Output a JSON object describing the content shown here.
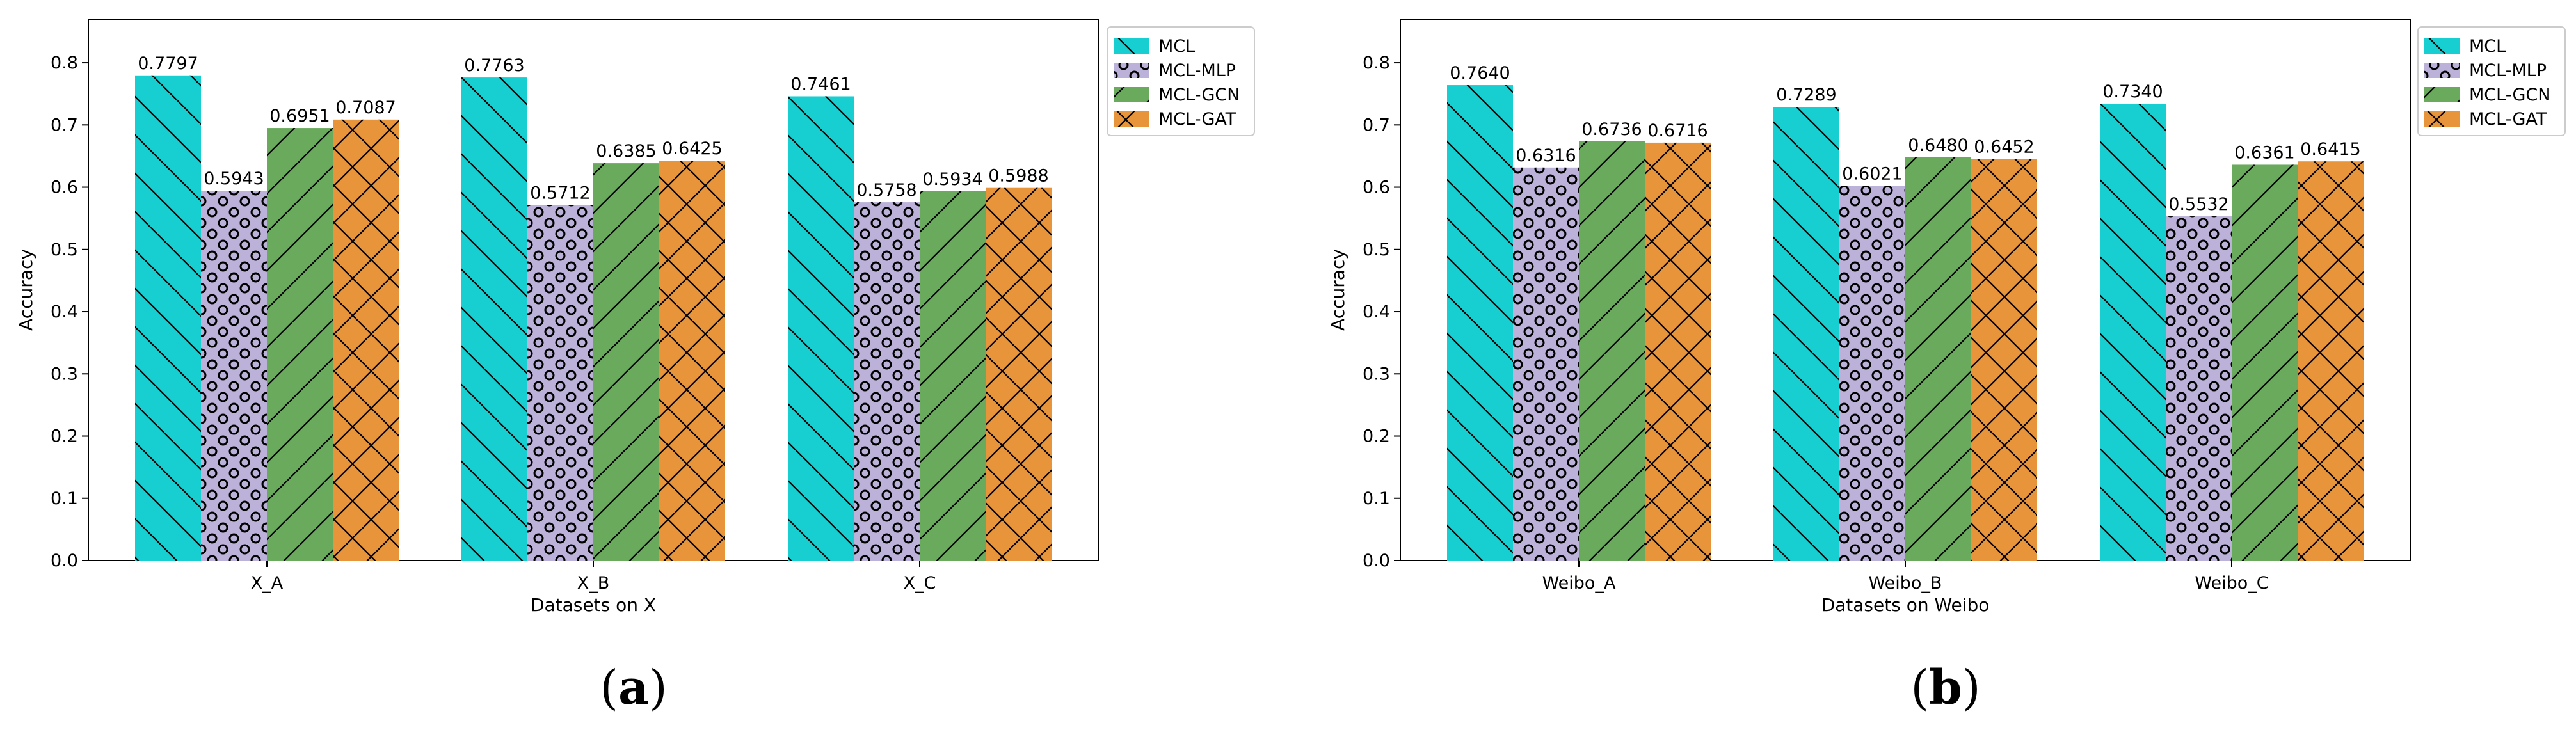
{
  "colors": {
    "MCL": "#17ced0",
    "MCL-MLP": "#bcb2d9",
    "MCL-GCN": "#6aaa5c",
    "MCL-GAT": "#e8943a"
  },
  "chart_data": [
    {
      "type": "bar",
      "title": "",
      "xlabel": "Datasets on X",
      "ylabel": "Accuracy",
      "ylim": [
        0,
        0.87
      ],
      "yticks": [
        "0.0",
        "0.1",
        "0.2",
        "0.3",
        "0.4",
        "0.5",
        "0.6",
        "0.7",
        "0.8"
      ],
      "categories": [
        "X_A",
        "X_B",
        "X_C"
      ],
      "legend_position": "outside-top-right",
      "series": [
        {
          "name": "MCL",
          "values": [
            0.7797,
            0.7763,
            0.7461
          ],
          "labels": [
            "0.7797",
            "0.7763",
            "0.7461"
          ],
          "hatch": "backslash"
        },
        {
          "name": "MCL-MLP",
          "values": [
            0.5943,
            0.5712,
            0.5758
          ],
          "labels": [
            "0.5943",
            "0.5712",
            "0.5758"
          ],
          "hatch": "circles"
        },
        {
          "name": "MCL-GCN",
          "values": [
            0.6951,
            0.6385,
            0.5934
          ],
          "labels": [
            "0.6951",
            "0.6385",
            "0.5934"
          ],
          "hatch": "slash"
        },
        {
          "name": "MCL-GAT",
          "values": [
            0.7087,
            0.6425,
            0.5988
          ],
          "labels": [
            "0.7087",
            "0.6425",
            "0.5988"
          ],
          "hatch": "cross"
        }
      ],
      "caption": "a"
    },
    {
      "type": "bar",
      "title": "",
      "xlabel": "Datasets on Weibo",
      "ylabel": "Accuracy",
      "ylim": [
        0,
        0.87
      ],
      "yticks": [
        "0.0",
        "0.1",
        "0.2",
        "0.3",
        "0.4",
        "0.5",
        "0.6",
        "0.7",
        "0.8"
      ],
      "categories": [
        "Weibo_A",
        "Weibo_B",
        "Weibo_C"
      ],
      "legend_position": "outside-top-right",
      "series": [
        {
          "name": "MCL",
          "values": [
            0.764,
            0.7289,
            0.734
          ],
          "labels": [
            "0.7640",
            "0.7289",
            "0.7340"
          ],
          "hatch": "backslash"
        },
        {
          "name": "MCL-MLP",
          "values": [
            0.6316,
            0.6021,
            0.5532
          ],
          "labels": [
            "0.6316",
            "0.6021",
            "0.5532"
          ],
          "hatch": "circles"
        },
        {
          "name": "MCL-GCN",
          "values": [
            0.6736,
            0.648,
            0.6361
          ],
          "labels": [
            "0.6736",
            "0.6480",
            "0.6361"
          ],
          "hatch": "slash"
        },
        {
          "name": "MCL-GAT",
          "values": [
            0.6716,
            0.6452,
            0.6415
          ],
          "labels": [
            "0.6716",
            "0.6452",
            "0.6415"
          ],
          "hatch": "cross"
        }
      ],
      "caption": "b"
    }
  ]
}
